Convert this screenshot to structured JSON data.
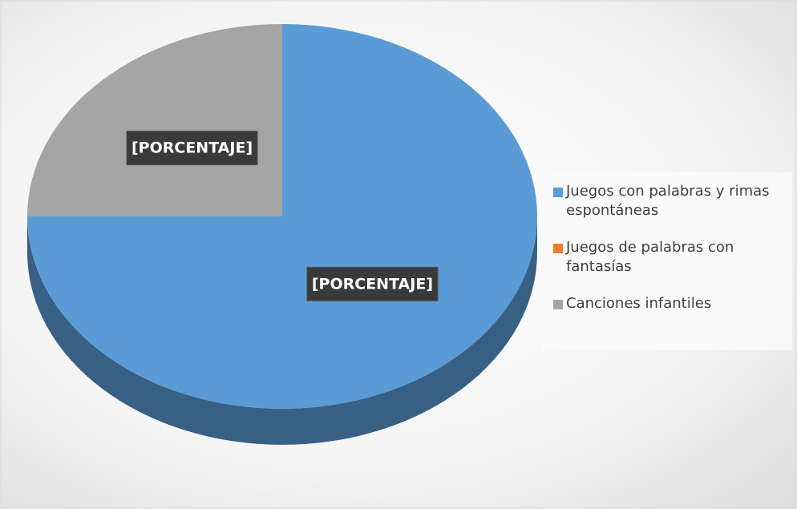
{
  "chart_data": {
    "type": "pie",
    "categories": [
      "Juegos con palabras y rimas espontáneas",
      "Juegos de palabras con fantasías",
      "Canciones infantiles"
    ],
    "values": [
      75,
      0,
      25
    ],
    "value_labels": [
      "[PORCENTAJE]",
      null,
      "[PORCENTAJE]"
    ],
    "colors": [
      "#5b9bd5",
      "#ed7d31",
      "#a5a5a5"
    ],
    "legend": "right"
  }
}
